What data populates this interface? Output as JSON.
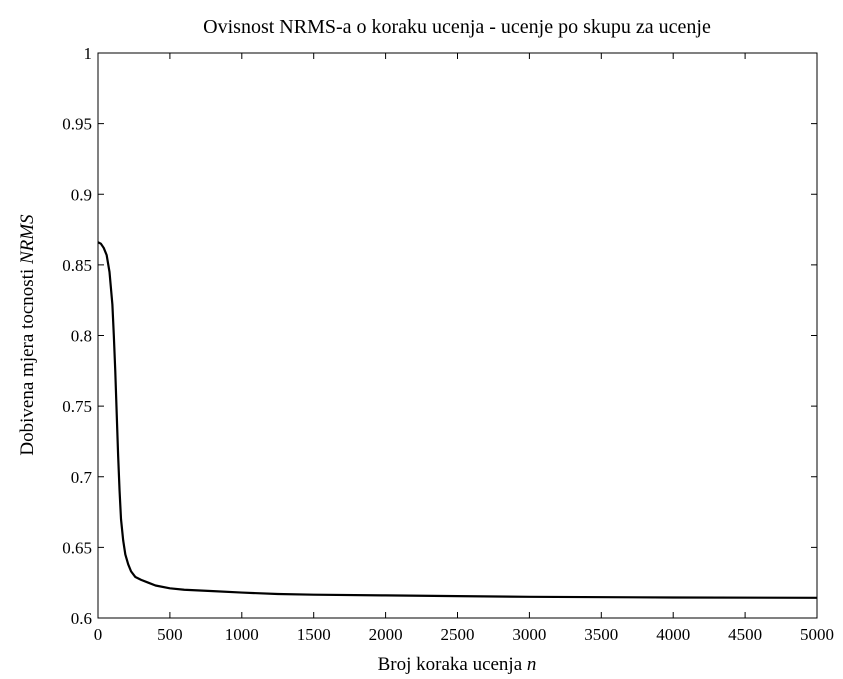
{
  "chart_data": {
    "type": "line",
    "title": "Ovisnost NRMS-a o koraku ucenja - ucenje po skupu za ucenje",
    "xlabel": "Broj koraka ucenja ",
    "xlabel_var": "n",
    "ylabel": "Dobivena mjera tocnosti ",
    "ylabel_var": "NRMS",
    "xlim": [
      0,
      5000
    ],
    "ylim": [
      0.6,
      1
    ],
    "xticks": [
      0,
      500,
      1000,
      1500,
      2000,
      2500,
      3000,
      3500,
      4000,
      4500,
      5000
    ],
    "yticks": [
      0.6,
      0.65,
      0.7,
      0.75,
      0.8,
      0.85,
      0.9,
      0.95,
      1
    ],
    "xtick_labels": [
      "0",
      "500",
      "1000",
      "1500",
      "2000",
      "2500",
      "3000",
      "3500",
      "4000",
      "4500",
      "5000"
    ],
    "ytick_labels": [
      "0.6",
      "0.65",
      "0.7",
      "0.75",
      "0.8",
      "0.85",
      "0.9",
      "0.95",
      "1"
    ],
    "grid": false,
    "line_color": "#000000",
    "series": [
      {
        "x": [
          0,
          20,
          40,
          60,
          80,
          100,
          110,
          120,
          130,
          140,
          150,
          160,
          175,
          190,
          210,
          230,
          260,
          300,
          350,
          400,
          500,
          600,
          800,
          1000,
          1250,
          1500,
          2000,
          2500,
          3000,
          4000,
          5000
        ],
        "values": [
          0.866,
          0.865,
          0.862,
          0.857,
          0.845,
          0.822,
          0.8,
          0.775,
          0.745,
          0.715,
          0.69,
          0.67,
          0.655,
          0.645,
          0.638,
          0.633,
          0.629,
          0.627,
          0.625,
          0.623,
          0.621,
          0.62,
          0.619,
          0.618,
          0.617,
          0.6165,
          0.616,
          0.6155,
          0.615,
          0.6145,
          0.6143
        ]
      }
    ]
  }
}
